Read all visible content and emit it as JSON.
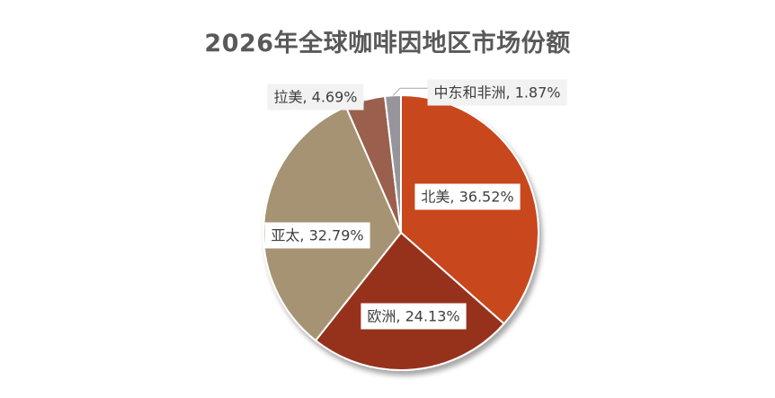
{
  "chart_data": {
    "type": "pie",
    "title": "2026年全球咖啡因地区市场份额",
    "slices": [
      {
        "name": "北美",
        "value": 36.52,
        "label": "北美, 36.52%",
        "color": "#C8461C"
      },
      {
        "name": "欧洲",
        "value": 24.13,
        "label": "欧洲, 24.13%",
        "color": "#96301F"
      },
      {
        "name": "亚太",
        "value": 32.79,
        "label": "亚太, 32.79%",
        "color": "#A69373"
      },
      {
        "name": "拉美",
        "value": 4.69,
        "label": "拉美, 4.69%",
        "color": "#9A5F4E"
      },
      {
        "name": "中东和非洲",
        "value": 1.87,
        "label": "中东和非洲, 1.87%",
        "color": "#95959B"
      }
    ],
    "legend": "none"
  }
}
